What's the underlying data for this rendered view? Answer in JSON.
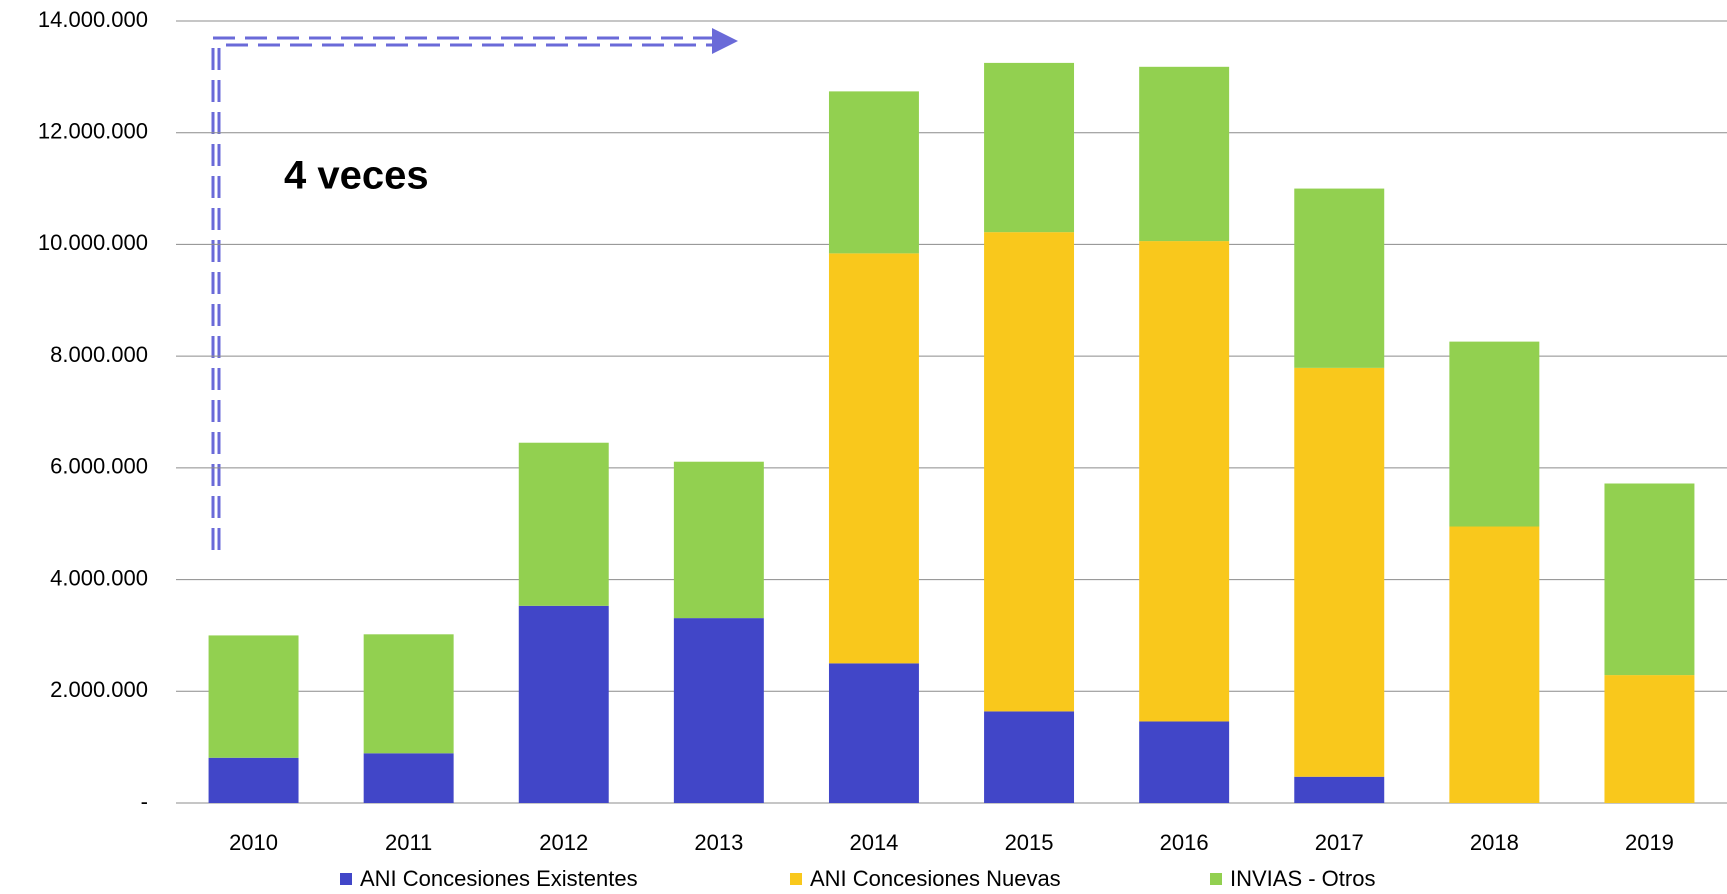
{
  "chart_data": {
    "type": "bar",
    "stacked": true,
    "annotation": "4 veces",
    "categories": [
      "2010",
      "2011",
      "2012",
      "2013",
      "2014",
      "2015",
      "2016",
      "2017",
      "2018",
      "2019"
    ],
    "series": [
      {
        "name": "ANI Concesiones Existentes",
        "color": "#4146c8",
        "values": [
          810000,
          890000,
          3530000,
          3310000,
          2500000,
          1640000,
          1460000,
          470000,
          0,
          0
        ]
      },
      {
        "name": "ANI Concesiones Nuevas",
        "color": "#f9c81c",
        "values": [
          0,
          0,
          0,
          0,
          7340000,
          8580000,
          8600000,
          7320000,
          4950000,
          2290000
        ]
      },
      {
        "name": "INVIAS - Otros",
        "color": "#92d050",
        "values": [
          2190000,
          2130000,
          2920000,
          2800000,
          2900000,
          3030000,
          3120000,
          3210000,
          3310000,
          3430000
        ]
      }
    ],
    "ylim": [
      0,
      14000000
    ],
    "yticks": [
      {
        "value": 0,
        "label": "-"
      },
      {
        "value": 2000000,
        "label": "2.000.000"
      },
      {
        "value": 4000000,
        "label": "4.000.000"
      },
      {
        "value": 6000000,
        "label": "6.000.000"
      },
      {
        "value": 8000000,
        "label": "8.000.000"
      },
      {
        "value": 10000000,
        "label": "10.000.000"
      },
      {
        "value": 12000000,
        "label": "12.000.000"
      },
      {
        "value": 14000000,
        "label": "14.000.000"
      }
    ],
    "grid": true
  }
}
